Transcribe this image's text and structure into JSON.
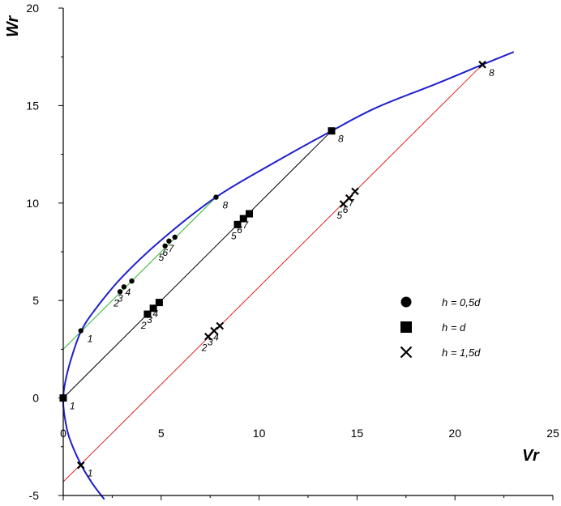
{
  "chart_data": {
    "type": "scatter",
    "title": "",
    "xlabel": "Vr",
    "ylabel": "Wr",
    "xlim": [
      0,
      25
    ],
    "ylim": [
      -5,
      20
    ],
    "x_ticks": [
      "0",
      "5",
      "10",
      "15",
      "20",
      "25"
    ],
    "y_ticks": [
      "-5",
      "0",
      "5",
      "10",
      "15",
      "20"
    ],
    "grid": false,
    "legend_position": "right",
    "colors": {
      "curve": "#1f1fcc",
      "line_half_d": "#2eb82e",
      "line_d": "#000000",
      "line_one_and_half_d": "#e02020",
      "markers": "#000000"
    },
    "curve": {
      "x": [
        23.0,
        21.4,
        19.0,
        16.0,
        13.7,
        11.0,
        7.8,
        5.0,
        3.0,
        1.6,
        0.9,
        0.4,
        0.1,
        0.0,
        0.05,
        0.3,
        0.9,
        1.5,
        2.1
      ],
      "y": [
        17.75,
        17.1,
        16.1,
        14.9,
        13.7,
        12.2,
        10.3,
        8.1,
        6.2,
        4.5,
        3.4,
        2.0,
        0.8,
        0.0,
        -0.8,
        -2.0,
        -3.4,
        -4.4,
        -5.2
      ]
    },
    "series": [
      {
        "name": "h = 0,5d",
        "marker": "circle",
        "x": [
          0.9,
          2.9,
          3.1,
          3.5,
          5.2,
          5.4,
          5.7,
          7.8
        ],
        "y": [
          3.45,
          5.45,
          5.7,
          6.0,
          7.8,
          8.05,
          8.25,
          10.3
        ],
        "labels": [
          "1",
          "2",
          "3",
          "4",
          "5",
          "6",
          "7",
          "8"
        ],
        "line": {
          "x": [
            0.0,
            7.8
          ],
          "y": [
            2.5,
            10.3
          ]
        }
      },
      {
        "name": "h = d",
        "marker": "square",
        "x": [
          0.0,
          4.3,
          4.6,
          4.9,
          8.9,
          9.2,
          9.5,
          13.7
        ],
        "y": [
          0.0,
          4.3,
          4.6,
          4.9,
          8.9,
          9.2,
          9.45,
          13.7
        ],
        "labels": [
          "1",
          "2",
          "3",
          "4",
          "5",
          "6",
          "7",
          "8"
        ],
        "line": {
          "x": [
            0.0,
            13.7
          ],
          "y": [
            0.0,
            13.7
          ]
        }
      },
      {
        "name": "h = 1,5d",
        "marker": "cross",
        "x": [
          0.9,
          7.4,
          7.7,
          8.0,
          14.3,
          14.6,
          14.9,
          21.4
        ],
        "y": [
          -3.45,
          3.15,
          3.45,
          3.7,
          9.95,
          10.25,
          10.6,
          17.1
        ],
        "labels": [
          "1",
          "2",
          "3",
          "4",
          "5",
          "6",
          "7",
          "8"
        ],
        "line": {
          "x": [
            0.0,
            21.4
          ],
          "y": [
            -4.3,
            17.1
          ]
        }
      }
    ]
  }
}
